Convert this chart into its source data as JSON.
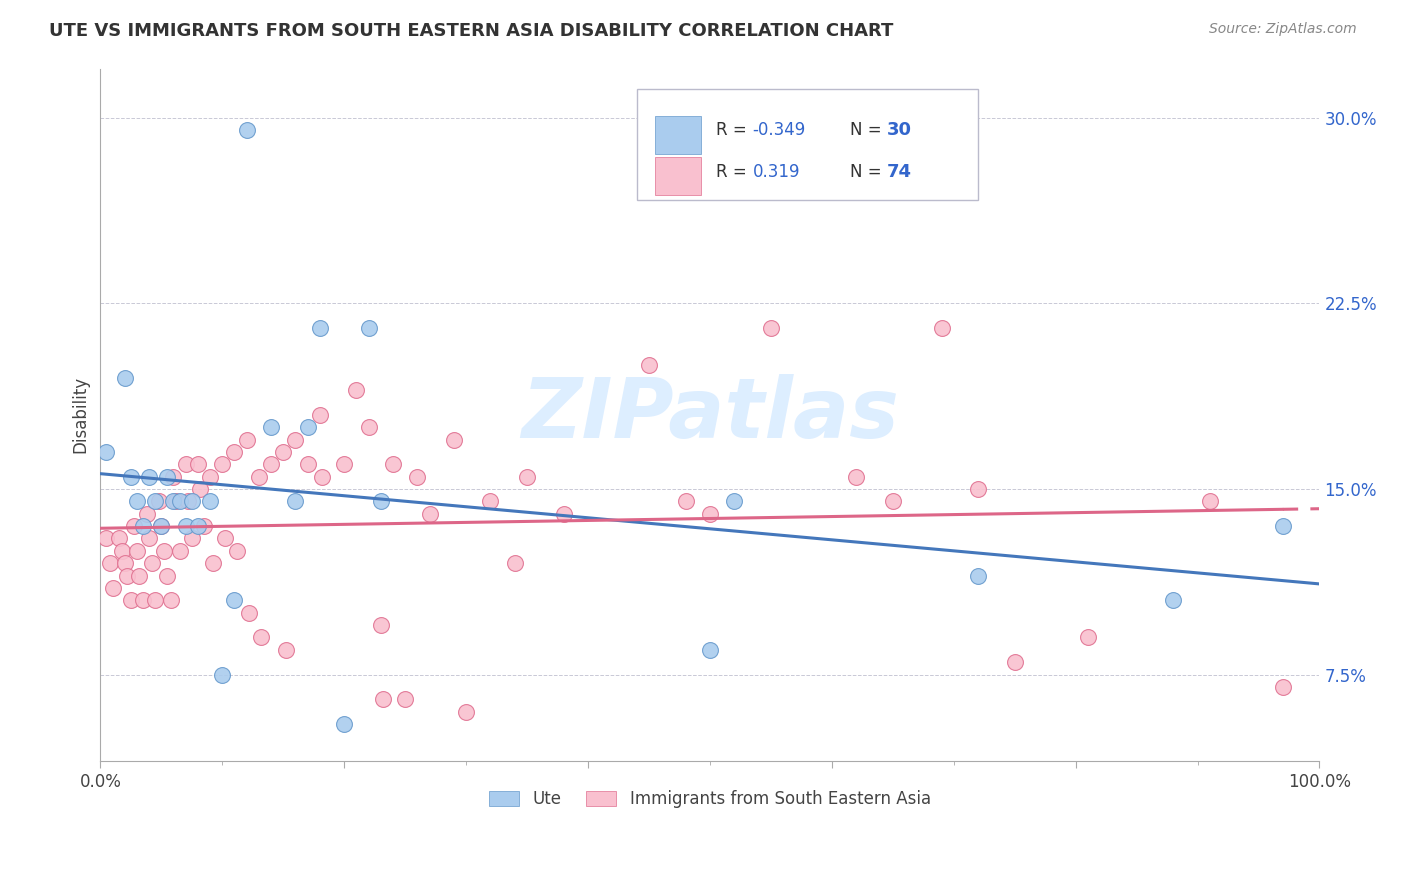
{
  "title": "UTE VS IMMIGRANTS FROM SOUTH EASTERN ASIA DISABILITY CORRELATION CHART",
  "source": "Source: ZipAtlas.com",
  "ylabel": "Disability",
  "xlim": [
    0,
    1.0
  ],
  "ylim": [
    0.04,
    0.32
  ],
  "xtick_vals": [
    0.0,
    0.2,
    0.4,
    0.6,
    0.8,
    1.0
  ],
  "ytick_vals": [
    0.075,
    0.15,
    0.225,
    0.3
  ],
  "ytick_labels": [
    "7.5%",
    "15.0%",
    "22.5%",
    "30.0%"
  ],
  "legend_labels": [
    "Ute",
    "Immigrants from South Eastern Asia"
  ],
  "R_ute": -0.349,
  "N_ute": 30,
  "R_immigrants": 0.319,
  "N_immigrants": 74,
  "ute_color": "#aaccee",
  "ute_edge_color": "#6699cc",
  "immigrants_color": "#f9c0cf",
  "immigrants_edge_color": "#e07090",
  "ute_line_color": "#4477bb",
  "immigrants_line_color": "#dd6688",
  "watermark": "ZIPatlas",
  "watermark_color": "#ddeeff",
  "ute_x": [
    0.005,
    0.02,
    0.025,
    0.03,
    0.035,
    0.04,
    0.045,
    0.05,
    0.055,
    0.06,
    0.065,
    0.07,
    0.075,
    0.08,
    0.09,
    0.1,
    0.11,
    0.12,
    0.14,
    0.16,
    0.17,
    0.18,
    0.2,
    0.22,
    0.23,
    0.5,
    0.52,
    0.72,
    0.88,
    0.97
  ],
  "ute_y": [
    0.165,
    0.195,
    0.155,
    0.145,
    0.135,
    0.155,
    0.145,
    0.135,
    0.155,
    0.145,
    0.145,
    0.135,
    0.145,
    0.135,
    0.145,
    0.075,
    0.105,
    0.295,
    0.175,
    0.145,
    0.175,
    0.215,
    0.055,
    0.215,
    0.145,
    0.085,
    0.145,
    0.115,
    0.105,
    0.135
  ],
  "imm_x": [
    0.005,
    0.008,
    0.01,
    0.015,
    0.018,
    0.02,
    0.022,
    0.025,
    0.028,
    0.03,
    0.032,
    0.035,
    0.038,
    0.04,
    0.042,
    0.045,
    0.048,
    0.05,
    0.052,
    0.055,
    0.058,
    0.06,
    0.062,
    0.065,
    0.07,
    0.072,
    0.075,
    0.08,
    0.082,
    0.085,
    0.09,
    0.092,
    0.1,
    0.102,
    0.11,
    0.112,
    0.12,
    0.122,
    0.13,
    0.132,
    0.14,
    0.15,
    0.152,
    0.16,
    0.17,
    0.18,
    0.182,
    0.2,
    0.21,
    0.22,
    0.23,
    0.232,
    0.24,
    0.25,
    0.26,
    0.27,
    0.29,
    0.3,
    0.32,
    0.34,
    0.35,
    0.38,
    0.45,
    0.48,
    0.5,
    0.55,
    0.62,
    0.65,
    0.69,
    0.72,
    0.75,
    0.81,
    0.91,
    0.97
  ],
  "imm_y": [
    0.13,
    0.12,
    0.11,
    0.13,
    0.125,
    0.12,
    0.115,
    0.105,
    0.135,
    0.125,
    0.115,
    0.105,
    0.14,
    0.13,
    0.12,
    0.105,
    0.145,
    0.135,
    0.125,
    0.115,
    0.105,
    0.155,
    0.145,
    0.125,
    0.16,
    0.145,
    0.13,
    0.16,
    0.15,
    0.135,
    0.155,
    0.12,
    0.16,
    0.13,
    0.165,
    0.125,
    0.17,
    0.1,
    0.155,
    0.09,
    0.16,
    0.165,
    0.085,
    0.17,
    0.16,
    0.18,
    0.155,
    0.16,
    0.19,
    0.175,
    0.095,
    0.065,
    0.16,
    0.065,
    0.155,
    0.14,
    0.17,
    0.06,
    0.145,
    0.12,
    0.155,
    0.14,
    0.2,
    0.145,
    0.14,
    0.215,
    0.155,
    0.145,
    0.215,
    0.15,
    0.08,
    0.09,
    0.145,
    0.07
  ]
}
